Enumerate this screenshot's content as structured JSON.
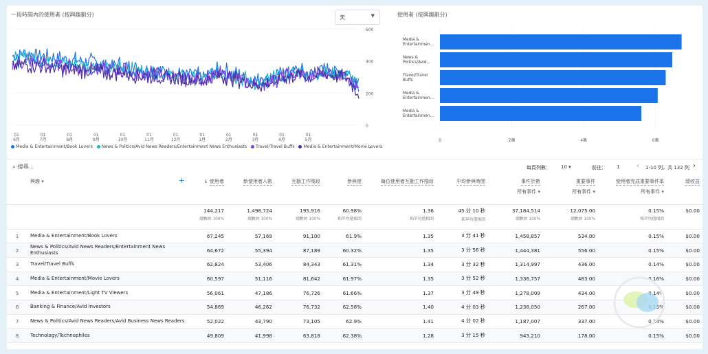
{
  "line_chart": {
    "title": "一段時間內的使用者 (按興趣劃分)",
    "granularity": "天",
    "y_ticks": [
      "600",
      "400",
      "200",
      "0"
    ],
    "x_ticks": [
      {
        "day": "01",
        "month": "6月"
      },
      {
        "day": "01",
        "month": "7月"
      },
      {
        "day": "01",
        "month": "8月"
      },
      {
        "day": "01",
        "month": "9月"
      },
      {
        "day": "01",
        "month": "10月"
      },
      {
        "day": "01",
        "month": "11月"
      },
      {
        "day": "01",
        "month": "12月"
      },
      {
        "day": "01",
        "month": "1月"
      },
      {
        "day": "01",
        "month": "2月"
      },
      {
        "day": "01",
        "month": "3月"
      },
      {
        "day": "01",
        "month": "4月"
      },
      {
        "day": "01",
        "month": "5月"
      }
    ],
    "legend": [
      {
        "label": "Media & Entertainment/Book Lovers",
        "color": "#1a73e8"
      },
      {
        "label": "News & Politics/Avid News Readers/Entertainment News Enthusiasts",
        "color": "#12b5cb"
      },
      {
        "label": "Travel/Travel Buffs",
        "color": "#7b3fe4"
      },
      {
        "label": "Media & Entertainment/Movie Lovers",
        "color": "#4a2c9e"
      }
    ]
  },
  "chart_data": [
    {
      "type": "line",
      "title": "一段時間內的使用者 (按興趣劃分)",
      "ylim": [
        0,
        600
      ],
      "x_range": [
        "6月",
        "5月"
      ],
      "series": [
        {
          "name": "Media & Entertainment/Book Lovers",
          "color": "#1a73e8",
          "values": [
            430,
            450,
            440,
            420,
            415,
            405,
            400,
            395,
            370,
            380,
            355,
            350,
            345,
            330,
            310,
            320,
            300,
            340,
            335,
            310,
            280,
            275,
            300,
            330,
            340,
            320,
            345,
            335,
            330,
            255
          ]
        },
        {
          "name": "News & Politics/Avid News Readers/Entertainment News Enthusiasts",
          "color": "#12b5cb",
          "values": [
            400,
            420,
            410,
            395,
            390,
            380,
            375,
            370,
            350,
            360,
            340,
            335,
            330,
            315,
            300,
            305,
            290,
            325,
            320,
            300,
            270,
            268,
            290,
            318,
            330,
            310,
            335,
            325,
            320,
            245
          ]
        },
        {
          "name": "Travel/Travel Buffs",
          "color": "#7b3fe4",
          "values": [
            380,
            395,
            390,
            375,
            370,
            362,
            358,
            352,
            338,
            345,
            325,
            320,
            318,
            305,
            290,
            295,
            282,
            315,
            312,
            292,
            265,
            262,
            285,
            310,
            322,
            305,
            330,
            320,
            315,
            210
          ]
        },
        {
          "name": "Media & Entertainment/Movie Lovers",
          "color": "#4a2c9e",
          "values": [
            360,
            378,
            372,
            360,
            355,
            348,
            342,
            338,
            325,
            330,
            312,
            308,
            305,
            292,
            280,
            285,
            272,
            305,
            300,
            282,
            255,
            252,
            275,
            300,
            312,
            295,
            320,
            310,
            305,
            195
          ]
        }
      ]
    },
    {
      "type": "bar",
      "title": "使用者 (按興趣劃分)",
      "categories": [
        "Media & Entertainmen...",
        "News & Politics/Avid...",
        "Travel/Travel Buffs",
        "Media & Entertainmen...",
        "Media & Entertainmen..."
      ],
      "values": [
        67245,
        64672,
        62824,
        60597,
        56061
      ],
      "xlim": [
        0,
        70000
      ],
      "x_ticks": [
        "0",
        "2萬",
        "4萬",
        "6萬"
      ],
      "color": "#1a73e8"
    }
  ],
  "bar_chart": {
    "title": "使用者 (按興趣劃分)",
    "labels": [
      [
        "Media &",
        "Entertainmen..."
      ],
      [
        "News &",
        "Politics/Avid..."
      ],
      [
        "Travel/Travel",
        "Buffs"
      ],
      [
        "Media &",
        "Entertainmen..."
      ],
      [
        "Media &",
        "Entertainmen..."
      ]
    ],
    "x_ticks": [
      "0",
      "2萬",
      "4萬",
      "6萬"
    ]
  },
  "table_controls": {
    "search_placeholder": "搜尋...",
    "rows_per_page_label": "每頁列數：",
    "rows_per_page": "10",
    "goto_label": "前往：",
    "goto_value": "1",
    "range": "1-10 列，共 132 列"
  },
  "table": {
    "dimension_header": "興趣",
    "columns": [
      {
        "label": "使用者",
        "sorted": true
      },
      {
        "label": "新使用者人數"
      },
      {
        "label": "互動工作階段"
      },
      {
        "label": "參與度"
      },
      {
        "label": "每位使用者互動工作階段"
      },
      {
        "label": "平均參與時間"
      },
      {
        "label": "事件計數",
        "sub": "所有事件"
      },
      {
        "label": "重要事件",
        "sub": "所有事件"
      },
      {
        "label": "使用者完成重要事件率",
        "sub": "所有事件"
      },
      {
        "label": "總收益"
      }
    ],
    "totals": [
      {
        "v": "144,217",
        "s": "總數的 100%"
      },
      {
        "v": "1,498,724",
        "s": "總數的 100%"
      },
      {
        "v": "195,916",
        "s": "總數的 100%"
      },
      {
        "v": "60.98%",
        "s": "和平均值相同"
      },
      {
        "v": "1.36",
        "s": "和平均值相同"
      },
      {
        "v": "45 分 10 秒",
        "s": "和平均值相同"
      },
      {
        "v": "37,184,514",
        "s": "總數的 100%"
      },
      {
        "v": "12,075.00",
        "s": "總數的 100%"
      },
      {
        "v": "0.15%",
        "s": "和平均值相同"
      },
      {
        "v": "$0.00",
        "s": ""
      }
    ],
    "rows": [
      {
        "n": "1",
        "name": "Media & Entertainment/Book Lovers",
        "cells": [
          "67,245",
          "57,169",
          "91,100",
          "61.9%",
          "1.35",
          "3 分 41 秒",
          "1,458,857",
          "534.00",
          "0.15%",
          "$0.00"
        ]
      },
      {
        "n": "2",
        "name": "News & Politics/Avid News Readers/Entertainment News Enthusiasts",
        "cells": [
          "64,672",
          "55,394",
          "87,189",
          "60.32%",
          "1.35",
          "3 分 56 秒",
          "1,444,381",
          "556.00",
          "0.15%",
          "$0.00"
        ]
      },
      {
        "n": "3",
        "name": "Travel/Travel Buffs",
        "cells": [
          "62,824",
          "53,406",
          "84,343",
          "61.31%",
          "1.34",
          "3 分 32 秒",
          "1,314,997",
          "436.00",
          "0.14%",
          "$0.00"
        ]
      },
      {
        "n": "4",
        "name": "Media & Entertainment/Movie Lovers",
        "cells": [
          "60,597",
          "51,116",
          "81,642",
          "61.97%",
          "1.35",
          "3 分 52 秒",
          "1,336,757",
          "483.00",
          "0.16%",
          "$0.00"
        ]
      },
      {
        "n": "5",
        "name": "Media & Entertainment/Light TV Viewers",
        "cells": [
          "56,061",
          "47,186",
          "76,726",
          "61.66%",
          "1.37",
          "3 分 49 秒",
          "1,278,009",
          "434.00",
          "0.14%",
          "$0.00"
        ]
      },
      {
        "n": "6",
        "name": "Banking & Finance/Avid Investors",
        "cells": [
          "54,869",
          "46,262",
          "76,732",
          "62.58%",
          "1.40",
          "4 分 03 秒",
          "1,238,050",
          "267.00",
          "0.15%",
          "$0.00"
        ]
      },
      {
        "n": "7",
        "name": "News & Politics/Avid News Readers/Avid Business News Readers",
        "cells": [
          "52,022",
          "43,790",
          "73,105",
          "62.9%",
          "1.41",
          "4 分 02 秒",
          "1,187,007",
          "337.00",
          "0.14%",
          "$0.00"
        ]
      },
      {
        "n": "8",
        "name": "Technology/Technophiles",
        "cells": [
          "49,809",
          "41,998",
          "63,818",
          "62.38%",
          "1.28",
          "3 分 15 秒",
          "943,210",
          "178.00",
          "0.15%",
          "$0.00"
        ]
      }
    ]
  }
}
